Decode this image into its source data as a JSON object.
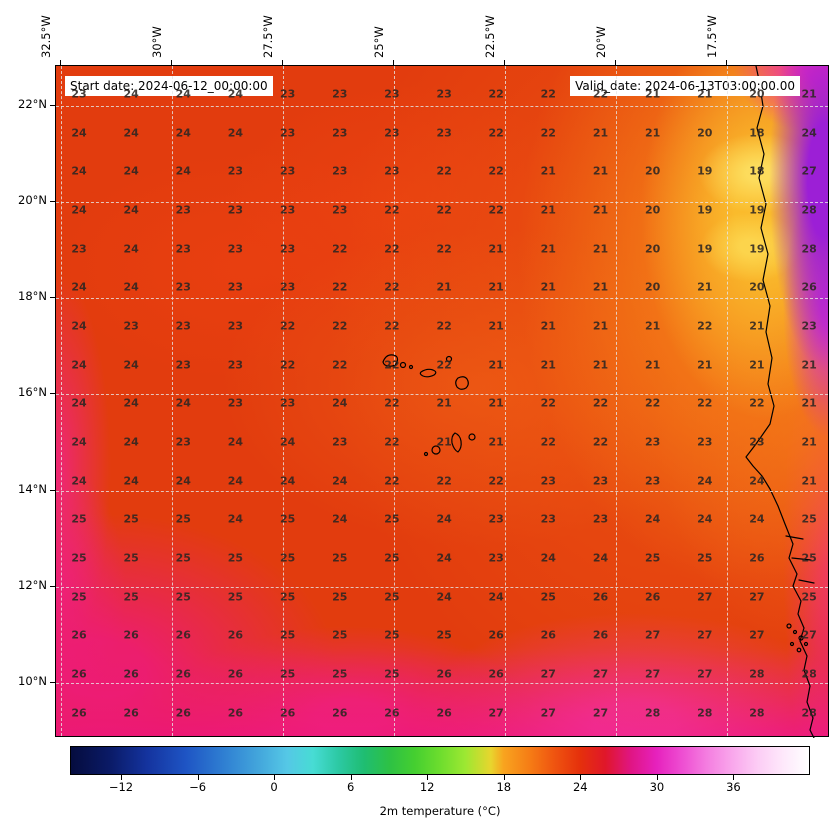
{
  "header": {
    "start_date_label": "Start date: 2024-06-12_00:00:00",
    "valid_date_label": "Valid_date: 2024-06-13T03:00:00.00"
  },
  "axes": {
    "lon_ticks": [
      "32.5°W",
      "30°W",
      "27.5°W",
      "25°W",
      "22.5°W",
      "20°W",
      "17.5°W"
    ],
    "lat_ticks": [
      "22°N",
      "20°N",
      "18°N",
      "16°N",
      "14°N",
      "12°N",
      "10°N"
    ]
  },
  "colorbar": {
    "tick_labels": [
      "−12",
      "−6",
      "0",
      "6",
      "12",
      "18",
      "24",
      "30",
      "36"
    ],
    "label": "2m temperature (°C)"
  },
  "chart_data": {
    "type": "heatmap",
    "title": "2m temperature",
    "value_unit": "°C",
    "x_ticks_deg_west": [
      32.5,
      30,
      27.5,
      25,
      22.5,
      20,
      17.5
    ],
    "y_ticks_deg_north": [
      22,
      20,
      18,
      16,
      14,
      12,
      10
    ],
    "colorbar_range": [
      -16,
      42
    ],
    "colorbar_ticks": [
      -12,
      -6,
      0,
      6,
      12,
      18,
      24,
      30,
      36
    ],
    "grid_values": [
      [
        23,
        24,
        24,
        24,
        23,
        23,
        23,
        23,
        22,
        22,
        22,
        21,
        21,
        20,
        21
      ],
      [
        24,
        24,
        24,
        24,
        23,
        23,
        23,
        23,
        22,
        22,
        21,
        21,
        20,
        18,
        24
      ],
      [
        24,
        24,
        24,
        23,
        23,
        23,
        23,
        22,
        22,
        21,
        21,
        20,
        19,
        18,
        27
      ],
      [
        24,
        24,
        23,
        23,
        23,
        23,
        22,
        22,
        22,
        21,
        21,
        20,
        19,
        19,
        28
      ],
      [
        23,
        24,
        23,
        23,
        23,
        22,
        22,
        22,
        21,
        21,
        21,
        20,
        19,
        19,
        28
      ],
      [
        24,
        24,
        23,
        23,
        23,
        22,
        22,
        21,
        21,
        21,
        21,
        20,
        21,
        20,
        26
      ],
      [
        24,
        23,
        23,
        23,
        22,
        22,
        22,
        22,
        21,
        21,
        21,
        21,
        22,
        21,
        23
      ],
      [
        24,
        24,
        23,
        23,
        22,
        22,
        22,
        22,
        21,
        21,
        21,
        21,
        21,
        21,
        21
      ],
      [
        24,
        24,
        24,
        23,
        23,
        24,
        22,
        21,
        21,
        22,
        22,
        22,
        22,
        22,
        21
      ],
      [
        24,
        24,
        23,
        24,
        24,
        23,
        22,
        21,
        21,
        22,
        22,
        23,
        23,
        23,
        21
      ],
      [
        24,
        24,
        24,
        24,
        24,
        24,
        22,
        22,
        22,
        23,
        23,
        23,
        24,
        24,
        21
      ],
      [
        25,
        25,
        25,
        24,
        25,
        24,
        25,
        24,
        23,
        23,
        23,
        24,
        24,
        24,
        25
      ],
      [
        25,
        25,
        25,
        25,
        25,
        25,
        25,
        24,
        23,
        24,
        24,
        25,
        25,
        26,
        25
      ],
      [
        25,
        25,
        25,
        25,
        25,
        25,
        25,
        24,
        24,
        25,
        26,
        26,
        27,
        27,
        25
      ],
      [
        26,
        26,
        26,
        26,
        25,
        25,
        25,
        25,
        26,
        26,
        26,
        27,
        27,
        27,
        27
      ],
      [
        26,
        26,
        26,
        26,
        25,
        25,
        25,
        26,
        26,
        27,
        27,
        27,
        27,
        28,
        28
      ],
      [
        26,
        26,
        26,
        26,
        26,
        26,
        26,
        26,
        27,
        27,
        27,
        28,
        28,
        28,
        28
      ]
    ]
  }
}
